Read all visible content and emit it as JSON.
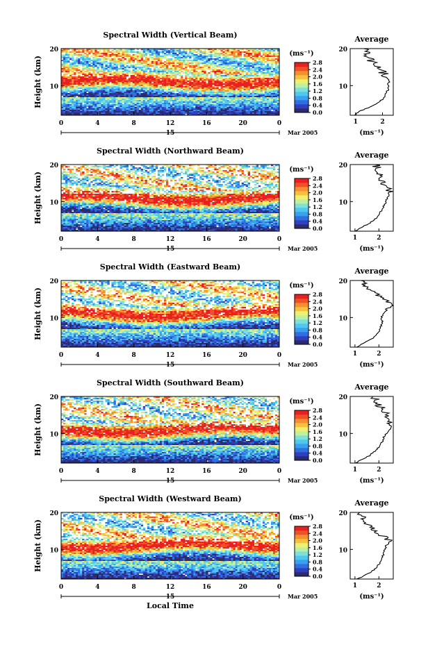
{
  "colors": {
    "colormap": [
      "#2b2b6e",
      "#2f3fbf",
      "#2f6fe0",
      "#3aa0f0",
      "#4fc8f0",
      "#7fe0d8",
      "#bff0a0",
      "#f0f070",
      "#f8c040",
      "#f49030",
      "#f05028",
      "#e82020"
    ],
    "line": "#000000"
  },
  "figure": {
    "xlabel": "Local Time",
    "day_label": "15",
    "date_label": "Mar 2005",
    "ylabel": "Height (km)",
    "colorbar_unit": "(ms⁻¹)",
    "colorbar_ticks": [
      "2.8",
      "2.4",
      "2.0",
      "1.6",
      "1.2",
      "0.8",
      "0.4",
      "0.0"
    ],
    "avg_title": "Average",
    "avg_xlabel": "(ms⁻¹)",
    "x_ticks": [
      "0",
      "4",
      "8",
      "12",
      "16",
      "20",
      "0"
    ],
    "y_ticks": [
      "20",
      "10"
    ]
  },
  "chart_data": [
    {
      "type": "heatmap",
      "title": "Spectral Width (Vertical Beam)",
      "x_range_hours": [
        0,
        24
      ],
      "y_range_km": [
        2,
        20
      ],
      "color_range_ms": [
        0.0,
        3.0
      ],
      "avg_profile": {
        "xticks": [
          "1",
          "2"
        ],
        "xlim": [
          0.8,
          2.4
        ],
        "height_km": [
          2,
          3,
          4,
          5,
          6,
          7,
          8,
          9,
          10,
          11,
          12,
          13,
          14,
          15,
          16,
          17,
          18,
          19,
          20
        ],
        "width_ms": [
          0.95,
          1.15,
          1.45,
          1.75,
          1.95,
          2.1,
          2.15,
          2.2,
          2.2,
          2.25,
          2.2,
          2.1,
          1.95,
          1.85,
          1.7,
          1.55,
          1.45,
          1.4,
          1.3
        ]
      }
    },
    {
      "type": "heatmap",
      "title": "Spectral Width (Northward Beam)",
      "x_range_hours": [
        0,
        24
      ],
      "y_range_km": [
        2,
        20
      ],
      "color_range_ms": [
        0.0,
        3.0
      ],
      "avg_profile": {
        "xticks": [
          "1",
          "2"
        ],
        "xlim": [
          0.8,
          2.6
        ],
        "height_km": [
          2,
          3,
          4,
          5,
          6,
          7,
          8,
          9,
          10,
          11,
          12,
          13,
          14,
          15,
          16,
          17,
          18,
          19,
          20
        ],
        "width_ms": [
          1.0,
          1.25,
          1.55,
          1.8,
          1.95,
          2.05,
          2.15,
          2.2,
          2.3,
          2.35,
          2.45,
          2.4,
          2.3,
          2.15,
          2.0,
          2.05,
          1.9,
          1.95,
          1.85
        ]
      }
    },
    {
      "type": "heatmap",
      "title": "Spectral Width (Eastward Beam)",
      "x_range_hours": [
        0,
        24
      ],
      "y_range_km": [
        2,
        20
      ],
      "color_range_ms": [
        0.0,
        3.0
      ],
      "avg_profile": {
        "xticks": [
          "1",
          "2"
        ],
        "xlim": [
          0.8,
          2.6
        ],
        "height_km": [
          2,
          3,
          4,
          5,
          6,
          7,
          8,
          9,
          10,
          11,
          12,
          13,
          14,
          15,
          16,
          17,
          18,
          19,
          20
        ],
        "width_ms": [
          1.1,
          1.35,
          1.65,
          1.85,
          2.0,
          2.05,
          2.1,
          2.15,
          2.1,
          2.2,
          2.35,
          2.45,
          2.4,
          2.3,
          2.0,
          1.85,
          1.6,
          1.4,
          1.25
        ]
      }
    },
    {
      "type": "heatmap",
      "title": "Spectral Width (Southward Beam)",
      "x_range_hours": [
        0,
        24
      ],
      "y_range_km": [
        2,
        20
      ],
      "color_range_ms": [
        0.0,
        3.0
      ],
      "avg_profile": {
        "xticks": [
          "1",
          "2"
        ],
        "xlim": [
          0.8,
          2.6
        ],
        "height_km": [
          2,
          3,
          4,
          5,
          6,
          7,
          8,
          9,
          10,
          11,
          12,
          13,
          14,
          15,
          16,
          17,
          18,
          19,
          20
        ],
        "width_ms": [
          1.0,
          1.3,
          1.6,
          1.8,
          1.95,
          2.05,
          2.15,
          2.2,
          2.3,
          2.45,
          2.5,
          2.45,
          2.4,
          2.35,
          2.2,
          2.1,
          1.95,
          1.9,
          1.75
        ]
      }
    },
    {
      "type": "heatmap",
      "title": "Spectral Width (Westward Beam)",
      "x_range_hours": [
        0,
        24
      ],
      "y_range_km": [
        2,
        20
      ],
      "color_range_ms": [
        0.0,
        3.0
      ],
      "avg_profile": {
        "xticks": [
          "1",
          "2"
        ],
        "xlim": [
          0.8,
          2.6
        ],
        "height_km": [
          2,
          3,
          4,
          5,
          6,
          7,
          8,
          9,
          10,
          11,
          12,
          13,
          14,
          15,
          16,
          17,
          18,
          19,
          20
        ],
        "width_ms": [
          1.1,
          1.4,
          1.7,
          1.9,
          2.0,
          2.1,
          2.15,
          2.2,
          2.25,
          2.3,
          2.45,
          2.35,
          2.05,
          1.75,
          1.65,
          1.5,
          1.4,
          1.3,
          1.2
        ]
      }
    }
  ]
}
